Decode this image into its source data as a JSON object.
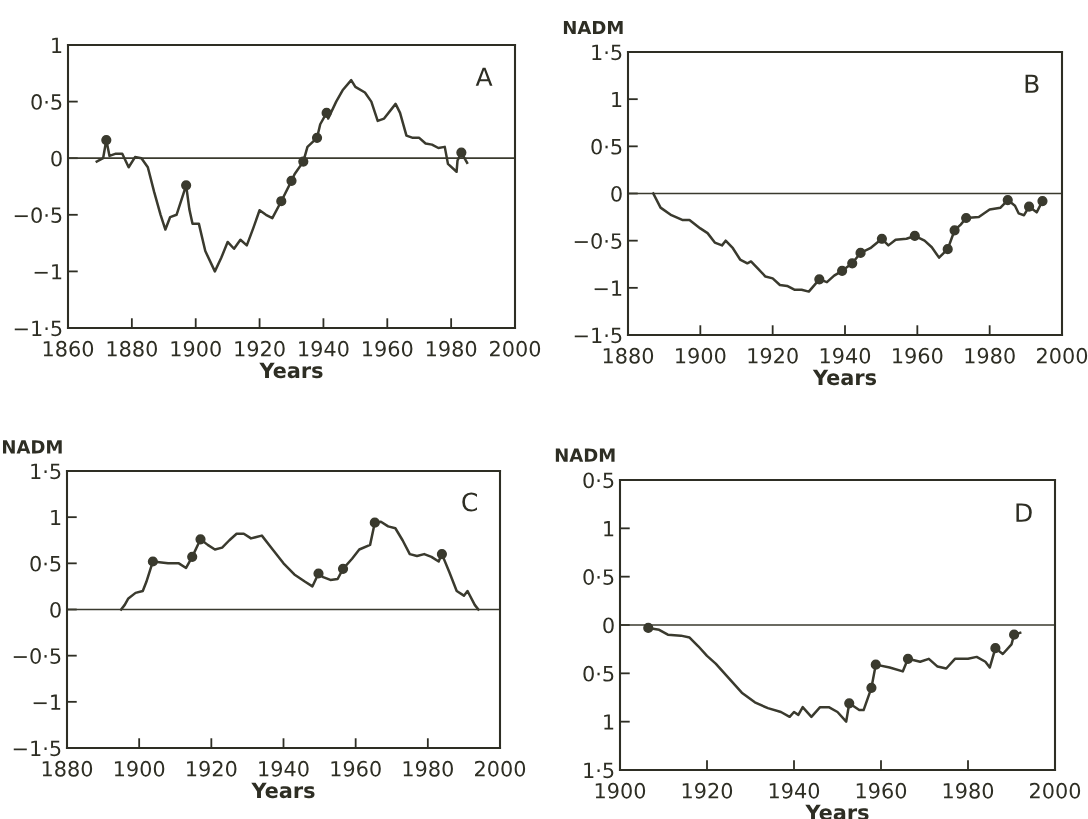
{
  "chart_data": [
    {
      "type": "line",
      "annotations": [
        "A"
      ],
      "xlabel": "Years",
      "xlim": [
        1860,
        2000
      ],
      "xticks": [
        1860,
        1880,
        1900,
        1920,
        1940,
        1960,
        1980,
        2000
      ],
      "ylim": [
        -1.5,
        1
      ],
      "yticks": [
        {
          "value": 1,
          "label": "1"
        },
        {
          "value": 0.5,
          "label": "0·5"
        },
        {
          "value": 0,
          "label": "0"
        },
        {
          "value": -0.5,
          "label": "−0·5"
        },
        {
          "value": -1,
          "label": "−1"
        },
        {
          "value": -1.5,
          "label": "−1·5"
        }
      ],
      "ref_lines": [
        {
          "axis": "y",
          "value": 0,
          "color": "#3a3a2e"
        }
      ],
      "grid": false,
      "legend": false,
      "series": [
        {
          "color": "#3a3a2e",
          "marker": "none",
          "x": [
            1869,
            1871,
            1872,
            1873,
            1875,
            1877,
            1879,
            1881,
            1883,
            1885,
            1887,
            1889,
            1890.5,
            1892,
            1894,
            1897,
            1898,
            1899,
            1901,
            1903,
            1906,
            1908,
            1910,
            1912,
            1914,
            1916,
            1918,
            1920,
            1922,
            1924,
            1926.8,
            1930,
            1931,
            1933.7,
            1935,
            1938,
            1939,
            1941,
            1941.5,
            1944,
            1946,
            1948.7,
            1950,
            1953,
            1955,
            1957,
            1959,
            1962.6,
            1964,
            1966,
            1968,
            1970,
            1972,
            1974,
            1976,
            1978,
            1979,
            1981.7,
            1982,
            1983.2,
            1985
          ],
          "values": [
            -0.03,
            0.0,
            0.16,
            0.02,
            0.04,
            0.04,
            -0.08,
            0.01,
            0.0,
            -0.08,
            -0.3,
            -0.5,
            -0.63,
            -0.52,
            -0.5,
            -0.24,
            -0.45,
            -0.58,
            -0.58,
            -0.82,
            -1.0,
            -0.88,
            -0.74,
            -0.8,
            -0.72,
            -0.77,
            -0.62,
            -0.46,
            -0.5,
            -0.53,
            -0.38,
            -0.2,
            -0.14,
            -0.03,
            0.1,
            0.18,
            0.3,
            0.4,
            0.35,
            0.5,
            0.6,
            0.69,
            0.63,
            0.58,
            0.5,
            0.33,
            0.35,
            0.48,
            0.4,
            0.2,
            0.18,
            0.18,
            0.13,
            0.12,
            0.09,
            0.1,
            -0.05,
            -0.12,
            -0.02,
            0.05,
            -0.04
          ]
        },
        {
          "type": "scatter",
          "color": "#3a3a2e",
          "marker": "circle",
          "x": [
            1872,
            1897,
            1926.8,
            1930,
            1933.7,
            1938,
            1941,
            1983.2
          ],
          "values": [
            0.16,
            -0.24,
            -0.38,
            -0.2,
            -0.03,
            0.18,
            0.4,
            0.05
          ]
        }
      ]
    },
    {
      "type": "line",
      "annotations": [
        "B"
      ],
      "xlabel": "Years",
      "ylabel": "NADM",
      "xlim": [
        1880,
        2000
      ],
      "xticks": [
        1880,
        1900,
        1920,
        1940,
        1960,
        1980,
        2000
      ],
      "ylim": [
        -1.5,
        1.5
      ],
      "yticks": [
        {
          "value": 1.5,
          "label": "1·5"
        },
        {
          "value": 1,
          "label": "1"
        },
        {
          "value": 0.5,
          "label": "0·5"
        },
        {
          "value": 0,
          "label": "0"
        },
        {
          "value": -0.5,
          "label": "−0·5"
        },
        {
          "value": -1,
          "label": "−1"
        },
        {
          "value": -1.5,
          "label": "−1·5"
        }
      ],
      "ref_lines": [
        {
          "axis": "y",
          "value": 0,
          "color": "#3a3a2e"
        }
      ],
      "grid": false,
      "legend": false,
      "series": [
        {
          "color": "#3a3a2e",
          "marker": "none",
          "x": [
            1887,
            1889,
            1892,
            1895,
            1897,
            1900,
            1902,
            1904,
            1906,
            1907,
            1909,
            1911,
            1913,
            1914,
            1916,
            1918,
            1920,
            1922,
            1924,
            1926,
            1928,
            1930,
            1932.9,
            1935,
            1937,
            1939.2,
            1942,
            1944.3,
            1947,
            1950.2,
            1952,
            1954,
            1957,
            1959.3,
            1962,
            1964,
            1966,
            1968.4,
            1970.3,
            1972,
            1973.5,
            1977,
            1980,
            1983,
            1985,
            1987,
            1988,
            1989.5,
            1990.9,
            1993,
            1994.6
          ],
          "values": [
            0.0,
            -0.15,
            -0.23,
            -0.28,
            -0.28,
            -0.37,
            -0.42,
            -0.52,
            -0.55,
            -0.5,
            -0.58,
            -0.7,
            -0.74,
            -0.72,
            -0.8,
            -0.88,
            -0.9,
            -0.97,
            -0.98,
            -1.02,
            -1.02,
            -1.04,
            -0.91,
            -0.94,
            -0.87,
            -0.82,
            -0.74,
            -0.63,
            -0.58,
            -0.48,
            -0.55,
            -0.49,
            -0.48,
            -0.45,
            -0.5,
            -0.57,
            -0.68,
            -0.59,
            -0.39,
            -0.33,
            -0.26,
            -0.25,
            -0.17,
            -0.15,
            -0.07,
            -0.13,
            -0.21,
            -0.23,
            -0.14,
            -0.2,
            -0.08
          ]
        },
        {
          "type": "scatter",
          "color": "#3a3a2e",
          "marker": "circle",
          "x": [
            1932.9,
            1939.2,
            1942,
            1944.3,
            1950.2,
            1959.3,
            1968.4,
            1970.3,
            1973.5,
            1985,
            1990.9,
            1994.6
          ],
          "values": [
            -0.91,
            -0.82,
            -0.74,
            -0.63,
            -0.48,
            -0.45,
            -0.59,
            -0.39,
            -0.26,
            -0.07,
            -0.14,
            -0.08
          ]
        }
      ]
    },
    {
      "type": "line",
      "annotations": [
        "C"
      ],
      "xlabel": "Years",
      "ylabel": "NADM",
      "xlim": [
        1880,
        2000
      ],
      "xticks": [
        1880,
        1900,
        1920,
        1940,
        1960,
        1980,
        2000
      ],
      "ylim": [
        -1.5,
        1.5
      ],
      "yticks": [
        {
          "value": 1.5,
          "label": "1·5"
        },
        {
          "value": 1,
          "label": "1"
        },
        {
          "value": 0.5,
          "label": "0·5"
        },
        {
          "value": 0,
          "label": "0"
        },
        {
          "value": -0.5,
          "label": "−0·5"
        },
        {
          "value": -1,
          "label": "−1"
        },
        {
          "value": -1.5,
          "label": "−1·5"
        }
      ],
      "ref_lines": [
        {
          "axis": "y",
          "value": 0,
          "color": "#3a3a2e"
        }
      ],
      "grid": false,
      "legend": false,
      "series": [
        {
          "color": "#3a3a2e",
          "marker": "none",
          "x": [
            1895,
            1896,
            1897,
            1899,
            1901,
            1902,
            1903.8,
            1908,
            1911,
            1913,
            1914.7,
            1917,
            1919,
            1921,
            1923,
            1925,
            1927,
            1929,
            1931,
            1934,
            1937,
            1940,
            1943,
            1946,
            1948,
            1949.7,
            1951,
            1953,
            1955,
            1956.5,
            1959,
            1961,
            1964,
            1965.3,
            1967,
            1969,
            1971,
            1973,
            1975,
            1977,
            1979,
            1981,
            1983,
            1983.9,
            1986,
            1988,
            1990,
            1991,
            1993,
            1994
          ],
          "values": [
            0.0,
            0.05,
            0.12,
            0.18,
            0.2,
            0.3,
            0.52,
            0.5,
            0.5,
            0.45,
            0.57,
            0.76,
            0.7,
            0.65,
            0.67,
            0.75,
            0.82,
            0.82,
            0.77,
            0.8,
            0.65,
            0.5,
            0.38,
            0.3,
            0.25,
            0.39,
            0.35,
            0.32,
            0.33,
            0.44,
            0.55,
            0.65,
            0.7,
            0.94,
            0.95,
            0.9,
            0.88,
            0.75,
            0.6,
            0.58,
            0.6,
            0.57,
            0.52,
            0.6,
            0.4,
            0.2,
            0.15,
            0.2,
            0.05,
            0.0
          ]
        },
        {
          "type": "scatter",
          "color": "#3a3a2e",
          "marker": "circle",
          "x": [
            1903.8,
            1914.7,
            1917,
            1949.7,
            1956.5,
            1965.3,
            1983.9
          ],
          "values": [
            0.52,
            0.57,
            0.76,
            0.39,
            0.44,
            0.94,
            0.6
          ]
        }
      ]
    },
    {
      "type": "line",
      "annotations": [
        "D"
      ],
      "xlabel": "Years",
      "ylabel": "NADM",
      "xlim": [
        1900,
        2000
      ],
      "xticks": [
        1900,
        1920,
        1940,
        1960,
        1980,
        2000
      ],
      "ylim": [
        -1.5,
        1.5
      ],
      "yticks": [
        {
          "value": 1.5,
          "label": "0·5"
        },
        {
          "value": 1,
          "label": "1"
        },
        {
          "value": 0.5,
          "label": "0·5"
        },
        {
          "value": 0,
          "label": "0"
        },
        {
          "value": -0.5,
          "label": "0·5"
        },
        {
          "value": -1,
          "label": "1"
        },
        {
          "value": -1.5,
          "label": "1·5"
        }
      ],
      "ref_lines": [
        {
          "axis": "y",
          "value": 0,
          "color": "#3a3a2e"
        }
      ],
      "grid": false,
      "legend": false,
      "series": [
        {
          "color": "#3a3a2e",
          "marker": "none",
          "x": [
            1906.5,
            1909,
            1911,
            1914,
            1916,
            1918,
            1920,
            1922,
            1925,
            1928,
            1931,
            1934,
            1937,
            1939,
            1940,
            1941,
            1942,
            1944,
            1946,
            1948,
            1950,
            1952,
            1952.7,
            1955,
            1956,
            1957.8,
            1958.8,
            1962,
            1965,
            1966.2,
            1969,
            1971,
            1973,
            1975,
            1977,
            1980,
            1982,
            1984,
            1985,
            1986.3,
            1988,
            1990,
            1990.6,
            1992
          ],
          "values": [
            -0.03,
            -0.05,
            -0.1,
            -0.11,
            -0.13,
            -0.22,
            -0.32,
            -0.4,
            -0.55,
            -0.7,
            -0.8,
            -0.86,
            -0.9,
            -0.95,
            -0.9,
            -0.93,
            -0.85,
            -0.95,
            -0.85,
            -0.85,
            -0.9,
            -1.0,
            -0.81,
            -0.88,
            -0.88,
            -0.65,
            -0.41,
            -0.44,
            -0.48,
            -0.35,
            -0.38,
            -0.35,
            -0.43,
            -0.45,
            -0.35,
            -0.35,
            -0.33,
            -0.38,
            -0.44,
            -0.24,
            -0.3,
            -0.2,
            -0.1,
            -0.08
          ]
        },
        {
          "type": "scatter",
          "color": "#3a3a2e",
          "marker": "circle",
          "x": [
            1906.5,
            1952.7,
            1957.8,
            1958.8,
            1966.2,
            1986.3,
            1990.6
          ],
          "values": [
            -0.03,
            -0.81,
            -0.65,
            -0.41,
            -0.35,
            -0.24,
            -0.1
          ]
        }
      ]
    }
  ]
}
